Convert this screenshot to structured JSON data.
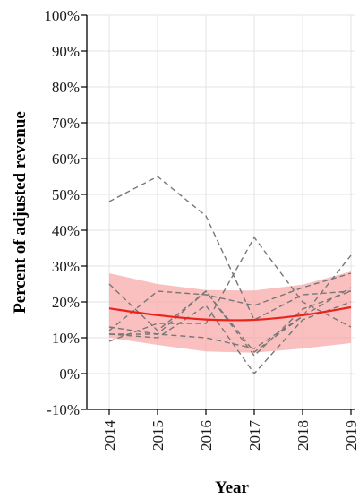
{
  "chart_data": {
    "type": "line",
    "xlabel": "Year",
    "ylabel": "Percent of adjusted revenue",
    "x": [
      2014,
      2015,
      2016,
      2017,
      2018,
      2019
    ],
    "x_ticks": [
      "2014",
      "2015",
      "2016",
      "2017",
      "2018",
      "2019"
    ],
    "y_ticks": [
      "-10%",
      "0%",
      "10%",
      "20%",
      "30%",
      "40%",
      "50%",
      "60%",
      "70%",
      "80%",
      "90%",
      "100%"
    ],
    "ylim": [
      -10,
      100
    ],
    "grid": true,
    "series": [
      {
        "style": "dashed",
        "color": "#777777",
        "values": [
          48,
          55,
          44,
          15,
          22,
          23
        ]
      },
      {
        "style": "dashed",
        "color": "#777777",
        "values": [
          25,
          12,
          23,
          6,
          16,
          33
        ]
      },
      {
        "style": "dashed",
        "color": "#777777",
        "values": [
          12,
          23,
          22,
          19,
          24,
          28
        ]
      },
      {
        "style": "dashed",
        "color": "#777777",
        "values": [
          9,
          14,
          14,
          38,
          20,
          13
        ]
      },
      {
        "style": "dashed",
        "color": "#777777",
        "values": [
          11,
          10,
          19,
          0,
          15,
          20
        ]
      },
      {
        "style": "dashed",
        "color": "#777777",
        "values": [
          11,
          11,
          23,
          5,
          18,
          23
        ]
      },
      {
        "style": "dashed",
        "color": "#777777",
        "values": [
          13,
          11,
          10,
          7,
          16,
          24
        ]
      }
    ],
    "fit": {
      "style": "solid",
      "color": "#e8241c",
      "values": [
        18.2,
        16.3,
        15.1,
        15.0,
        16.3,
        18.5
      ],
      "band_lower": [
        10,
        8,
        6.2,
        5.8,
        7.0,
        8.5
      ],
      "band_upper": [
        28,
        25,
        23.3,
        23.2,
        24.8,
        28.5
      ],
      "band_color": "#f8a9a9"
    }
  }
}
